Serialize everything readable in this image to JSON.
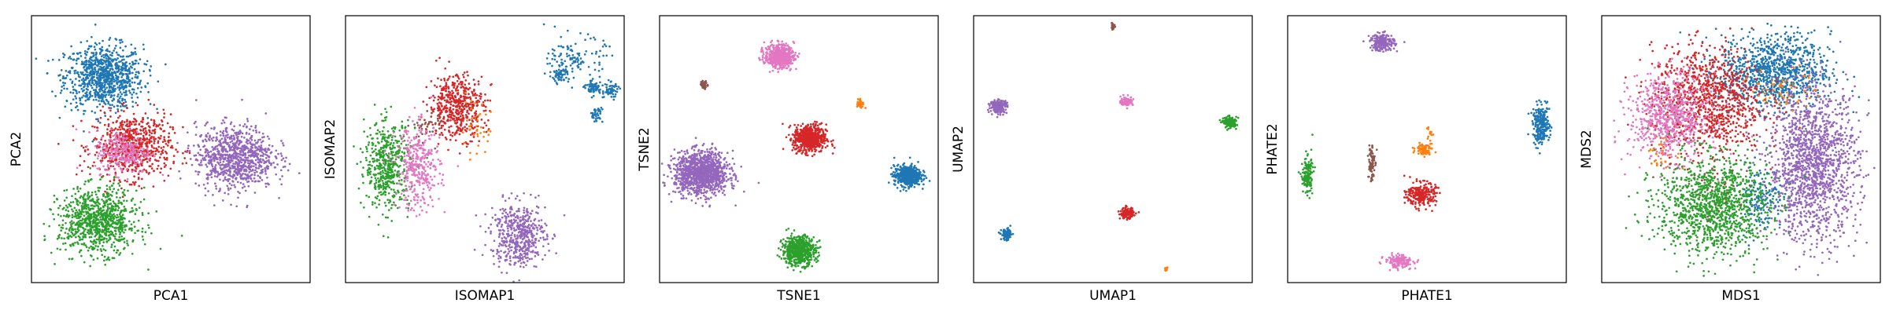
{
  "colors": {
    "blue": "#1f77b4",
    "orange": "#ff7f0e",
    "green": "#2ca02c",
    "red": "#d62728",
    "purple": "#9467bd",
    "brown": "#8c564b",
    "pink": "#e377c2",
    "frame": "#000000",
    "background": "#ffffff"
  },
  "chart_data": [
    {
      "type": "scatter",
      "xlabel": "PCA1",
      "ylabel": "PCA2",
      "xlim": [
        0,
        100
      ],
      "ylim": [
        0,
        100
      ],
      "grid": false,
      "ticks": false,
      "clusters": [
        {
          "color": "blue",
          "cx": 26,
          "cy": 77,
          "sx": 7,
          "sy": 6,
          "n": 900
        },
        {
          "color": "red",
          "cx": 36,
          "cy": 51,
          "sx": 7,
          "sy": 6,
          "n": 700
        },
        {
          "color": "pink",
          "cx": 33,
          "cy": 49,
          "sx": 5,
          "sy": 4,
          "n": 250
        },
        {
          "color": "purple",
          "cx": 73,
          "cy": 47,
          "sx": 7,
          "sy": 6,
          "n": 900
        },
        {
          "color": "green",
          "cx": 24,
          "cy": 23,
          "sx": 7,
          "sy": 6,
          "n": 900
        }
      ]
    },
    {
      "type": "scatter",
      "xlabel": "ISOMAP1",
      "ylabel": "ISOMAP2",
      "xlim": [
        0,
        100
      ],
      "ylim": [
        0,
        100
      ],
      "grid": false,
      "ticks": false,
      "clusters": [
        {
          "color": "red",
          "cx": 40,
          "cy": 66,
          "sx": 5,
          "sy": 6,
          "n": 500
        },
        {
          "color": "orange",
          "cx": 46,
          "cy": 58,
          "sx": 3,
          "sy": 5,
          "n": 40
        },
        {
          "color": "brown",
          "cx": 29,
          "cy": 58,
          "sx": 3,
          "sy": 3,
          "n": 40
        },
        {
          "color": "green",
          "cx": 15,
          "cy": 44,
          "sx": 4,
          "sy": 8,
          "n": 500
        },
        {
          "color": "pink",
          "cx": 26,
          "cy": 43,
          "sx": 4,
          "sy": 8,
          "n": 350
        },
        {
          "color": "purple",
          "cx": 62,
          "cy": 18,
          "sx": 5,
          "sy": 6,
          "n": 500
        },
        {
          "color": "blue",
          "cx": 83,
          "cy": 84,
          "sx": 5,
          "sy": 4,
          "n": 120
        },
        {
          "color": "blue",
          "cx": 77,
          "cy": 78,
          "sx": 1.5,
          "sy": 1.5,
          "n": 60
        },
        {
          "color": "blue",
          "cx": 89,
          "cy": 73,
          "sx": 1.5,
          "sy": 1.5,
          "n": 60
        },
        {
          "color": "blue",
          "cx": 95,
          "cy": 72,
          "sx": 1.5,
          "sy": 1.5,
          "n": 60
        },
        {
          "color": "blue",
          "cx": 90,
          "cy": 63,
          "sx": 1.2,
          "sy": 1.5,
          "n": 40
        }
      ]
    },
    {
      "type": "scatter",
      "xlabel": "TSNE1",
      "ylabel": "TSNE2",
      "xlim": [
        0,
        100
      ],
      "ylim": [
        0,
        100
      ],
      "grid": false,
      "ticks": false,
      "clusters": [
        {
          "color": "pink",
          "cx": 43,
          "cy": 85,
          "sx": 2.6,
          "sy": 2.2,
          "n": 500
        },
        {
          "color": "brown",
          "cx": 16,
          "cy": 74,
          "sx": 0.7,
          "sy": 0.7,
          "n": 40
        },
        {
          "color": "orange",
          "cx": 72,
          "cy": 67,
          "sx": 0.8,
          "sy": 0.9,
          "n": 30
        },
        {
          "color": "red",
          "cx": 54,
          "cy": 54,
          "sx": 2.9,
          "sy": 2.6,
          "n": 600
        },
        {
          "color": "blue",
          "cx": 89,
          "cy": 40,
          "sx": 2.4,
          "sy": 1.9,
          "n": 500
        },
        {
          "color": "purple",
          "cx": 15,
          "cy": 41,
          "sx": 4.8,
          "sy": 4.0,
          "n": 1200
        },
        {
          "color": "green",
          "cx": 50,
          "cy": 12,
          "sx": 3.0,
          "sy": 2.7,
          "n": 600
        }
      ]
    },
    {
      "type": "scatter",
      "xlabel": "UMAP1",
      "ylabel": "UMAP2",
      "xlim": [
        0,
        100
      ],
      "ylim": [
        0,
        100
      ],
      "grid": false,
      "ticks": false,
      "clusters": [
        {
          "color": "brown",
          "cx": 50,
          "cy": 96,
          "sx": 0.4,
          "sy": 0.5,
          "n": 20
        },
        {
          "color": "purple",
          "cx": 9,
          "cy": 66,
          "sx": 1.5,
          "sy": 1.2,
          "n": 200
        },
        {
          "color": "pink",
          "cx": 55,
          "cy": 68,
          "sx": 1.1,
          "sy": 0.8,
          "n": 100
        },
        {
          "color": "green",
          "cx": 92,
          "cy": 60,
          "sx": 1.2,
          "sy": 1.0,
          "n": 150
        },
        {
          "color": "red",
          "cx": 55,
          "cy": 26,
          "sx": 1.2,
          "sy": 1.0,
          "n": 150
        },
        {
          "color": "blue",
          "cx": 12,
          "cy": 18,
          "sx": 1.0,
          "sy": 1.0,
          "n": 100
        },
        {
          "color": "orange",
          "cx": 69,
          "cy": 5,
          "sx": 0.3,
          "sy": 0.5,
          "n": 15
        }
      ]
    },
    {
      "type": "scatter",
      "xlabel": "PHATE1",
      "ylabel": "PHATE2",
      "xlim": [
        0,
        100
      ],
      "ylim": [
        0,
        100
      ],
      "grid": false,
      "ticks": false,
      "clusters": [
        {
          "color": "purple",
          "cx": 34,
          "cy": 90,
          "sx": 2.2,
          "sy": 1.6,
          "n": 200
        },
        {
          "color": "blue",
          "cx": 91,
          "cy": 59,
          "sx": 1.5,
          "sy": 3.6,
          "n": 250
        },
        {
          "color": "orange",
          "cx": 49,
          "cy": 50,
          "sx": 1.5,
          "sy": 1.0,
          "n": 80
        },
        {
          "color": "orange",
          "cx": 51,
          "cy": 56,
          "sx": 0.6,
          "sy": 2.0,
          "n": 15
        },
        {
          "color": "brown",
          "cx": 30,
          "cy": 45,
          "sx": 0.6,
          "sy": 4.0,
          "n": 80
        },
        {
          "color": "red",
          "cx": 48,
          "cy": 33,
          "sx": 2.6,
          "sy": 2.2,
          "n": 250
        },
        {
          "color": "green",
          "cx": 7,
          "cy": 40,
          "sx": 1.0,
          "sy": 3.6,
          "n": 150
        },
        {
          "color": "pink",
          "cx": 40,
          "cy": 8,
          "sx": 2.5,
          "sy": 1.2,
          "n": 150
        }
      ]
    },
    {
      "type": "scatter",
      "xlabel": "MDS1",
      "ylabel": "MDS2",
      "xlim": [
        0,
        100
      ],
      "ylim": [
        0,
        100
      ],
      "grid": false,
      "ticks": false,
      "clusters": [
        {
          "color": "blue",
          "cx": 62,
          "cy": 79,
          "sx": 10,
          "sy": 7,
          "n": 1000
        },
        {
          "color": "blue",
          "cx": 57,
          "cy": 32,
          "sx": 4,
          "sy": 6,
          "n": 150
        },
        {
          "color": "red",
          "cx": 38,
          "cy": 68,
          "sx": 10,
          "sy": 10,
          "n": 1000
        },
        {
          "color": "pink",
          "cx": 24,
          "cy": 62,
          "sx": 7,
          "sy": 8,
          "n": 700
        },
        {
          "color": "purple",
          "cx": 76,
          "cy": 44,
          "sx": 8,
          "sy": 14,
          "n": 1500
        },
        {
          "color": "green",
          "cx": 40,
          "cy": 29,
          "sx": 10,
          "sy": 9,
          "n": 1200
        },
        {
          "color": "orange",
          "cx": 66,
          "cy": 73,
          "sx": 6,
          "sy": 4,
          "n": 60
        },
        {
          "color": "orange",
          "cx": 22,
          "cy": 48,
          "sx": 3,
          "sy": 3,
          "n": 30
        },
        {
          "color": "brown",
          "cx": 42,
          "cy": 38,
          "sx": 8,
          "sy": 8,
          "n": 30
        }
      ]
    }
  ]
}
